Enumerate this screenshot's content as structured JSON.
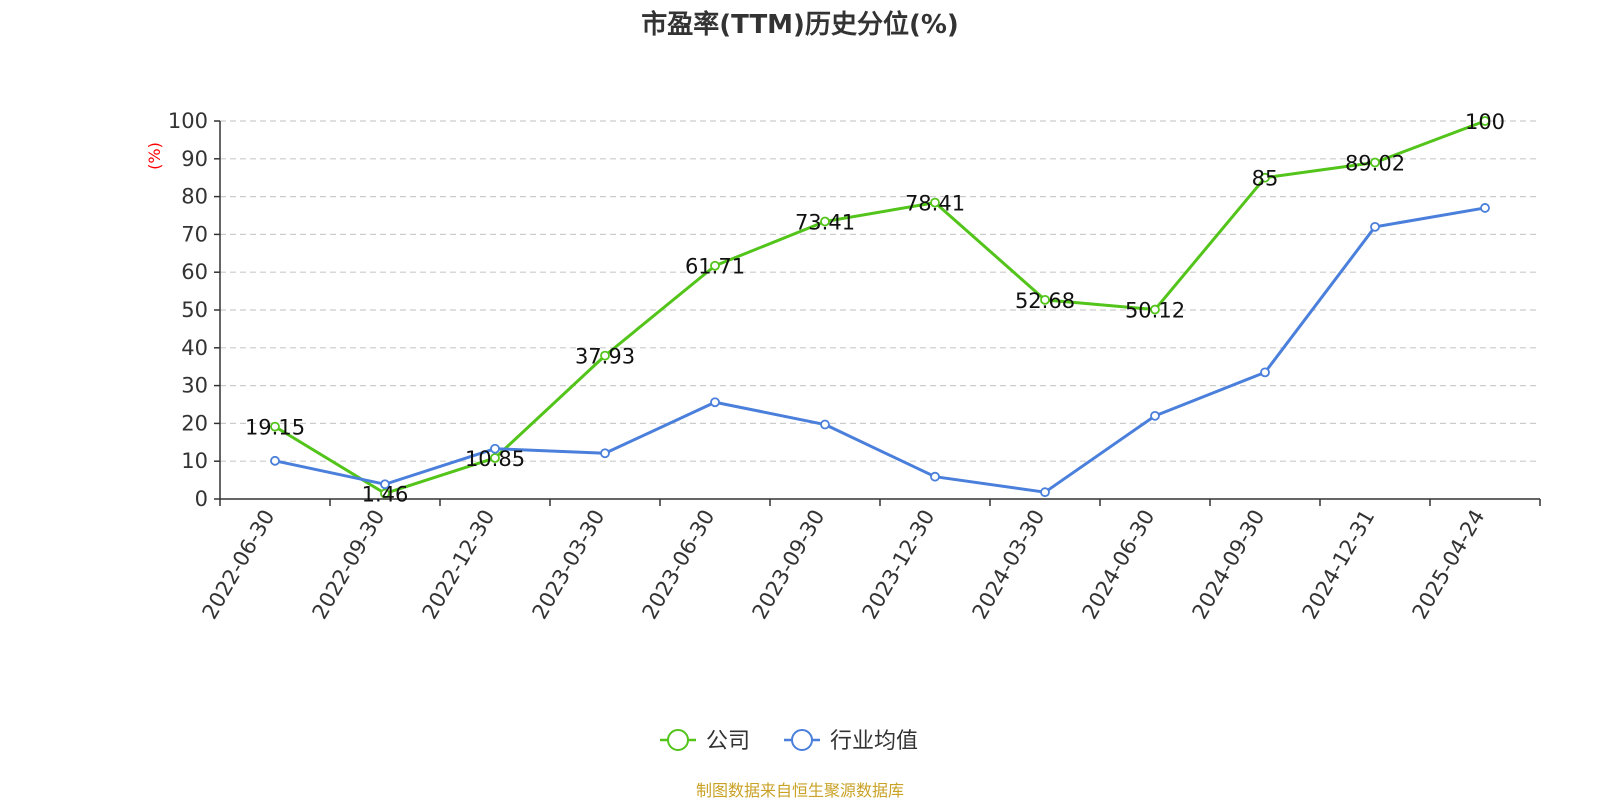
{
  "chart_data": {
    "type": "line",
    "title": "市盈率(TTM)历史分位(%)",
    "ylabel": "(%)",
    "ylim": [
      0,
      100
    ],
    "yticks": [
      0,
      10,
      20,
      30,
      40,
      50,
      60,
      70,
      80,
      90,
      100
    ],
    "grid": true,
    "legend_position": "bottom",
    "categories": [
      "2022-06-30",
      "2022-09-30",
      "2022-12-30",
      "2023-03-30",
      "2023-06-30",
      "2023-09-30",
      "2023-12-30",
      "2024-03-30",
      "2024-06-30",
      "2024-09-30",
      "2024-12-31",
      "2025-04-24"
    ],
    "series": [
      {
        "name": "公司",
        "color": "#52c41a",
        "values": [
          19.15,
          1.46,
          10.85,
          37.93,
          61.71,
          73.41,
          78.41,
          52.68,
          50.12,
          85,
          89.02,
          100
        ],
        "labels": [
          "19.15",
          "1.46",
          "10.85",
          "37.93",
          "61.71",
          "73.41",
          "78.41",
          "52.68",
          "50.12",
          "85",
          "89.02",
          "100"
        ]
      },
      {
        "name": "行业均值",
        "color": "#4a7fdb",
        "values": [
          10.1,
          3.9,
          13.3,
          12.1,
          25.6,
          19.7,
          5.9,
          1.8,
          22.0,
          33.5,
          72.0,
          77.0
        ]
      }
    ],
    "ylabel_color": "#ff0000"
  },
  "source_text": "制图数据来自恒生聚源数据库",
  "source_color": "#c9a227"
}
